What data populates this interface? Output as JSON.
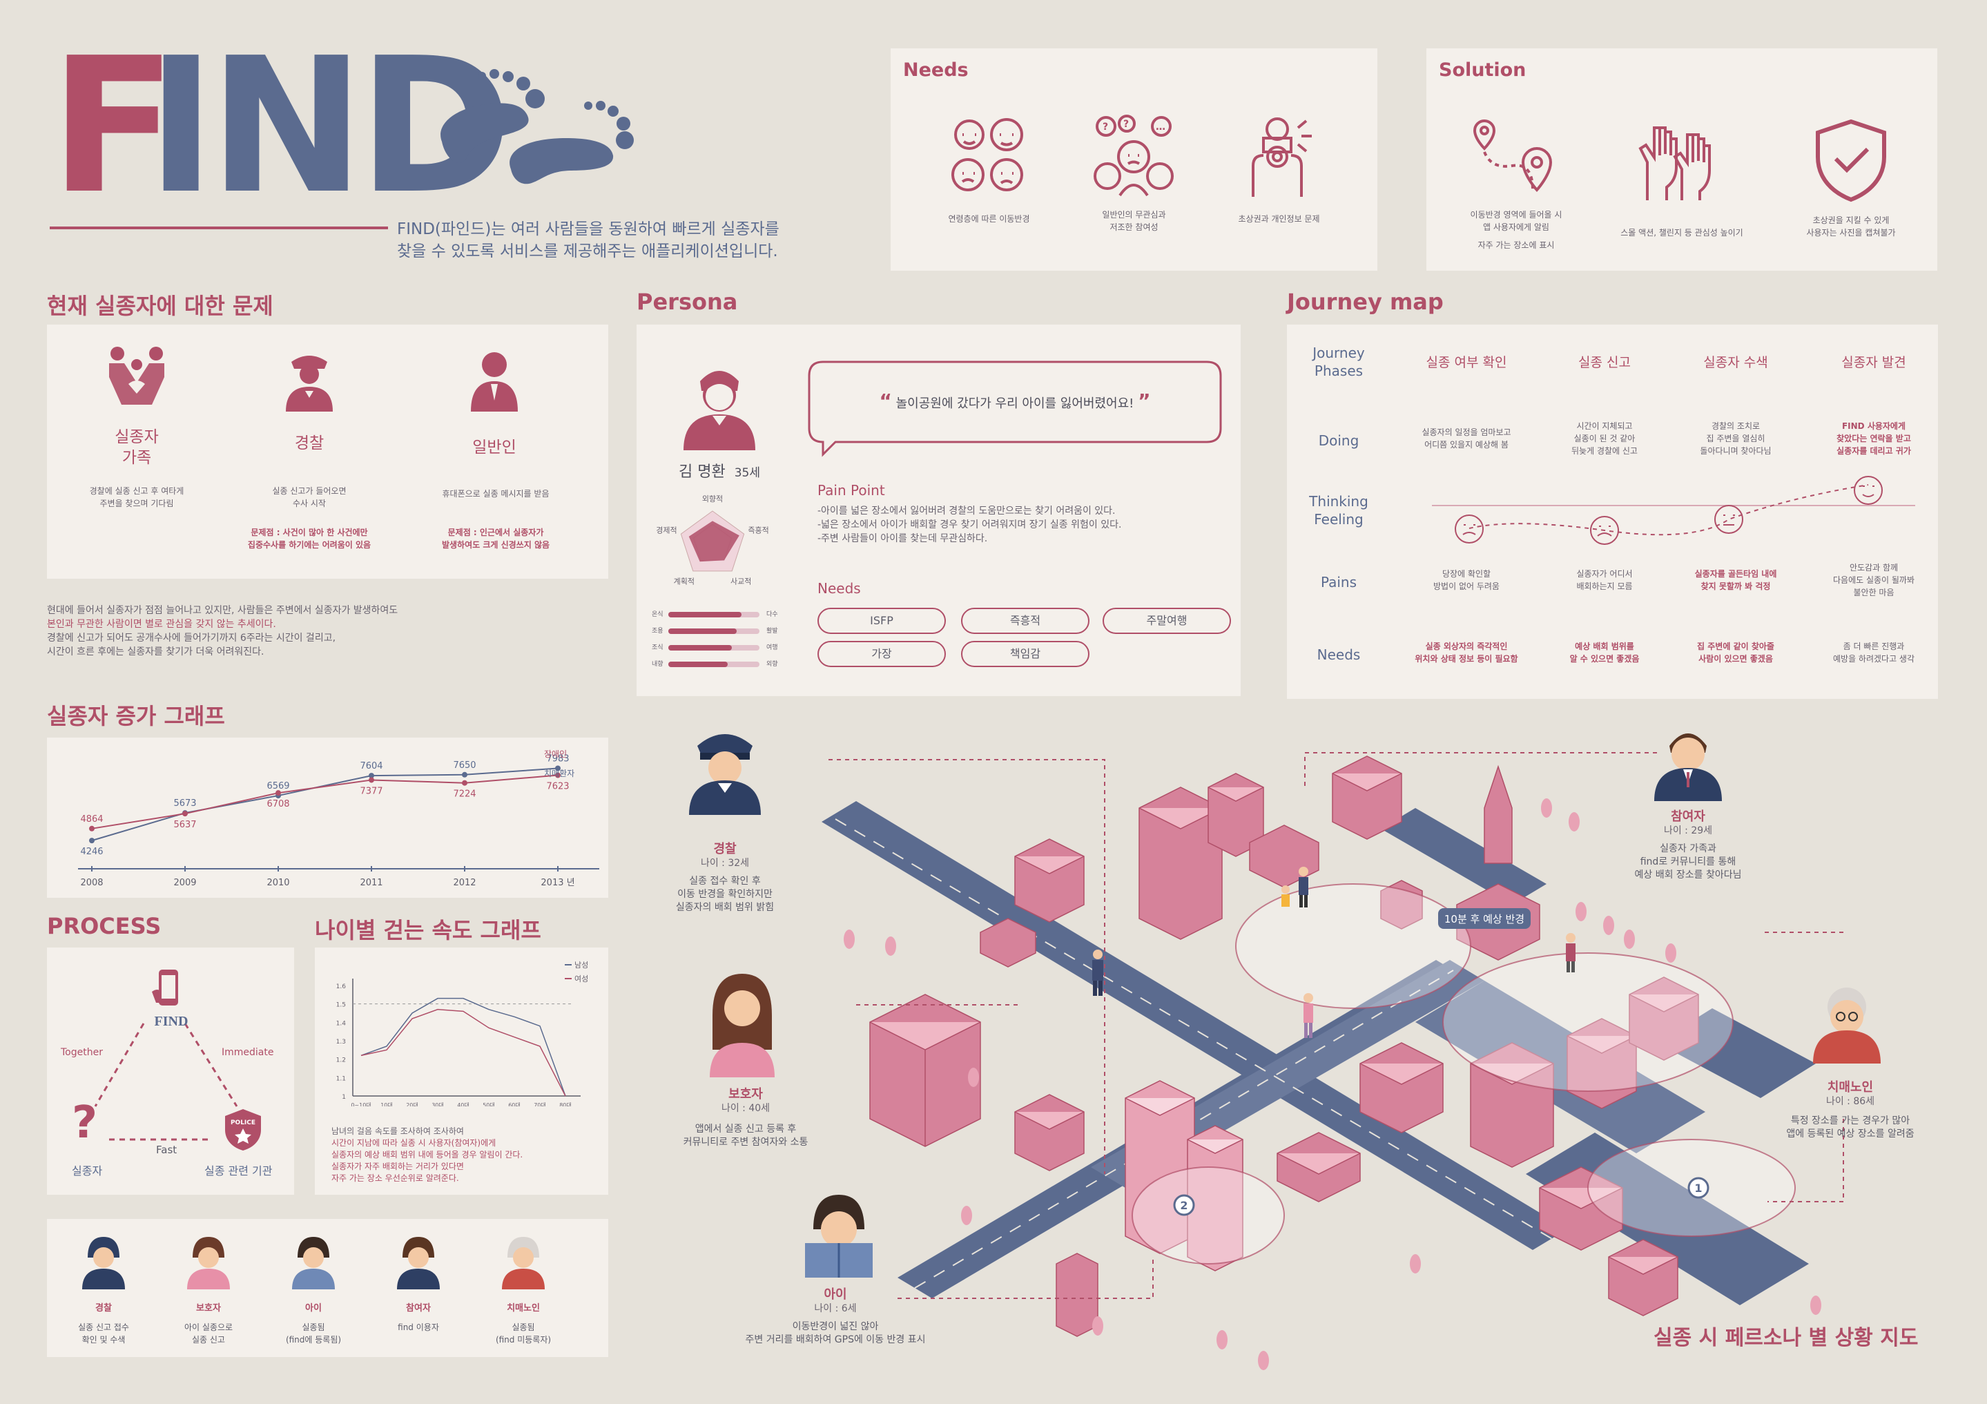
{
  "header": {
    "logo_f": "F",
    "logo_ind": "IND",
    "tagline_1": "FIND(파인드)는 여러 사람들을 동원하여 빠르게 실종자를",
    "tagline_2": "찾을 수 있도록 서비스를 제공해주는 애플리케이션입니다."
  },
  "needs": {
    "title": "Needs",
    "items": [
      {
        "label": "연령층에 따른 이동반경",
        "icon": "family-faces-icon"
      },
      {
        "label_1": "일반인의 무관심과",
        "label_2": "저조한 참여성",
        "icon": "confused-people-icon"
      },
      {
        "label": "초상권과 개인정보 문제",
        "icon": "camera-man-icon"
      }
    ]
  },
  "solution": {
    "title": "Solution",
    "items": [
      {
        "label_1": "이동반경 영역에 들어올 시",
        "label_2": "앱 사용자에게 알림",
        "label_3": "자주 가는 장소에 표시",
        "icon": "route-pin-icon"
      },
      {
        "label": "스몰 액션, 챌린지 등 관심성 높이기",
        "icon": "raised-hands-icon"
      },
      {
        "label_1": "초상권을 지킬 수 있게",
        "label_2": "사용자는 사진을 캡쳐불가",
        "icon": "shield-check-icon"
      }
    ]
  },
  "problems": {
    "title": "현재 실종자에 대한 문제",
    "cols": [
      {
        "name_1": "실종자",
        "name_2": "가족",
        "desc_1": "경찰에 실종 신고 후 여타게",
        "desc_2": "주변을 찾으며 기다림",
        "note_1": "",
        "note_2": ""
      },
      {
        "name_1": "경찰",
        "desc_1": "실종 신고가 들어오면",
        "desc_2": "수사 시작",
        "note_1": "문제점 : 사건이 많아 한 사건에만",
        "note_2": "집중수사를 하기에는 어려움이 있음"
      },
      {
        "name_1": "일반인",
        "desc_1": "휴대폰으로 실종 메시지를 받음",
        "desc_2": "",
        "note_1": "문제점 : 인근에서 실종자가",
        "note_2": "발생하여도 크게 신경쓰지 않음"
      }
    ],
    "paragraph": [
      "현대에 들어서 실종자가 점점 늘어나고 있지만, 사람들은 주변에서 실종자가 발생하여도",
      "본인과 무관한 사람이면 별로 관심을 갖지 않는 추세이다.",
      "경찰에 신고가 되어도 공개수사에 들어가기까지 6주라는 시간이 걸리고,",
      "시간이 흐른 후에는 실종자를 찾기가 더욱 어려워진다."
    ]
  },
  "persona": {
    "title": "Persona",
    "name": "김 명환",
    "age": "35세",
    "quote": "놀이공원에 갔다가 우리 아이를 잃어버렸어요!",
    "radar_labels": [
      "외향적",
      "즉흥적",
      "사교적",
      "계획적",
      "경제적"
    ],
    "bar_labels_left": [
      "온식",
      "조용",
      "조식",
      "내향"
    ],
    "bar_labels_right": [
      "다수",
      "활발",
      "여행",
      "외향"
    ],
    "pain_title": "Pain Point",
    "pain_lines": [
      "-아이를 넓은 장소에서 잃어버려 경찰의 도움만으로는 찾기 어려움이 있다.",
      "-넓은 장소에서 아이가 배회할 경우 찾기 어려워지며 장기 실종 위험이 있다.",
      "-주변 사람들이 아이를 찾는데 무관심하다."
    ],
    "needs_title": "Needs",
    "needs_pills": [
      "ISFP",
      "즉흥적",
      "주말여행",
      "가장",
      "책임감"
    ]
  },
  "journey": {
    "title": "Journey map",
    "row_labels": [
      "Journey\nPhases",
      "Doing",
      "Thinking\nFeeling",
      "Pains",
      "Needs"
    ],
    "phases": [
      "실종 여부 확인",
      "실종 신고",
      "실종자 수색",
      "실종자 발견"
    ],
    "doing": [
      [
        "실종자의 일정을 엄마보고",
        "어디쯤 있을지 예상해 봄"
      ],
      [
        "시간이 지체되고",
        "실종이 된 것 같아",
        "뒤늦게 경찰에 신고"
      ],
      [
        "경찰의 조치로",
        "집 주변을 열심히",
        "돌아다니며 찾아다님"
      ],
      [
        "FIND 사용자에게",
        "찾았다는 연락을 받고",
        "실종자를 데리고 귀가"
      ]
    ],
    "pains": [
      [
        "당장에 확인할",
        "방법이 없어 두려움"
      ],
      [
        "실종자가 어디서",
        "배회하는지 모름"
      ],
      [
        "실종자를 골든타임 내에",
        "찾지 못할까 봐 걱정"
      ],
      [
        "안도감과 함께",
        "다음에도 실종이 될까봐",
        "불안한 마음"
      ]
    ],
    "needs": [
      [
        "실종 외상자의 즉각적인",
        "위치와 상태 정보 등이 필요함"
      ],
      [
        "예상 배회 범위를",
        "알 수 있으면 좋겠음"
      ],
      [
        "집 주변에 같이 찾아줄",
        "사람이 있으면 좋겠음"
      ],
      [
        "좀 더 빠른 진행과",
        "예방을 하려겠다고 생각"
      ]
    ]
  },
  "chart_data": {
    "type": "line",
    "title": "실종자 증가 그래프",
    "categories": [
      "2008",
      "2009",
      "2010",
      "2011",
      "2012",
      "2013 년"
    ],
    "series": [
      {
        "name": "치매환자",
        "color": "#5b6b8f",
        "values": [
          4246,
          5673,
          6569,
          7604,
          7650,
          7983
        ]
      },
      {
        "name": "장애인",
        "color": "#b04f68",
        "values": [
          4864,
          5637,
          6708,
          7377,
          7224,
          7623
        ]
      }
    ],
    "ylim": [
      3500,
      8500
    ]
  },
  "process": {
    "title": "PROCESS",
    "find": "FIND",
    "together": "Together",
    "immediate": "Immediate",
    "fast": "Fast",
    "missing": "실종자",
    "agency": "실종 관련 기관",
    "police_badge": "POLICE"
  },
  "speed_chart": {
    "title": "나이별 걷는 속도 그래프",
    "legend": [
      "남성",
      "여성"
    ],
    "y_ticks": [
      "1.6",
      "1.5",
      "1.4",
      "1.3",
      "1.2",
      "1.1",
      "1"
    ],
    "x_ticks": [
      "0~10대",
      "10대",
      "20대",
      "30대",
      "40대",
      "50대",
      "60대",
      "70대",
      "80대"
    ],
    "male": [
      1.22,
      1.27,
      1.45,
      1.53,
      1.53,
      1.47,
      1.43,
      1.38,
      1.0
    ],
    "female": [
      1.22,
      1.25,
      1.42,
      1.47,
      1.46,
      1.37,
      1.32,
      1.27,
      1.0
    ],
    "notes": [
      "남녀의 걸음 속도를 조사하여 조사하여",
      "시간이 지남에 따라 실종 시 사용자(참여자)에게",
      "실종자의 예상 배회 범위 내에 등어올 경우 알림이 간다.",
      "실종자가 자주 배회하는 거리가 있다면",
      "자주 가는 장소 우선순위로 알려준다."
    ]
  },
  "personas_strip": [
    {
      "name": "경찰",
      "line1": "실종 신고 접수",
      "line2": "확인 및 수색",
      "icon": "police-avatar-icon"
    },
    {
      "name": "보호자",
      "line1": "아이 실종으로",
      "line2": "실종 신고",
      "icon": "guardian-avatar-icon"
    },
    {
      "name": "아이",
      "line1": "실종됨",
      "line2": "(find에 등록됨)",
      "icon": "child-avatar-icon"
    },
    {
      "name": "참여자",
      "line1": "find 이용자",
      "line2": "",
      "icon": "participant-avatar-icon"
    },
    {
      "name": "치매노인",
      "line1": "실종됨",
      "line2": "(find 미등록자)",
      "icon": "elder-avatar-icon"
    }
  ],
  "map": {
    "title": "실종 시 페르소나 별 상황 지도",
    "badge": "10분 후 예상 반경",
    "police": {
      "name": "경찰",
      "age": "나이 : 32세",
      "lines": [
        "실종 접수 확인 후",
        "이동 반경을 확인하지만",
        "실종자의 배회 범위 밝힘"
      ]
    },
    "guardian": {
      "name": "보호자",
      "age": "나이 : 40세",
      "lines": [
        "앱에서 실종 신고 등록 후",
        "커뮤니티로 주변 참여자와 소통"
      ]
    },
    "child": {
      "name": "아이",
      "age": "나이 : 6세",
      "lines": [
        "이동반경이 넓진 않아",
        "주변 거리를 배회하여 GPS에 이동 반경 표시"
      ]
    },
    "participant": {
      "name": "참여자",
      "age": "나이 : 29세",
      "lines": [
        "실종자 가족과",
        "find로 커뮤니티를 통해",
        "예상 배회 장소를 찾아다님"
      ]
    },
    "elder": {
      "name": "치매노인",
      "age": "나이 : 86세",
      "lines": [
        "특정 장소를 가는 경우가 많아",
        "앱에 등록된 예상 장소를 알려줌"
      ]
    },
    "marker1": "1",
    "marker2": "2"
  },
  "colors": {
    "rose": "#b04f68",
    "navy": "#5b6b8f",
    "bg": "#e6e2da",
    "card": "#f4f0eb"
  }
}
